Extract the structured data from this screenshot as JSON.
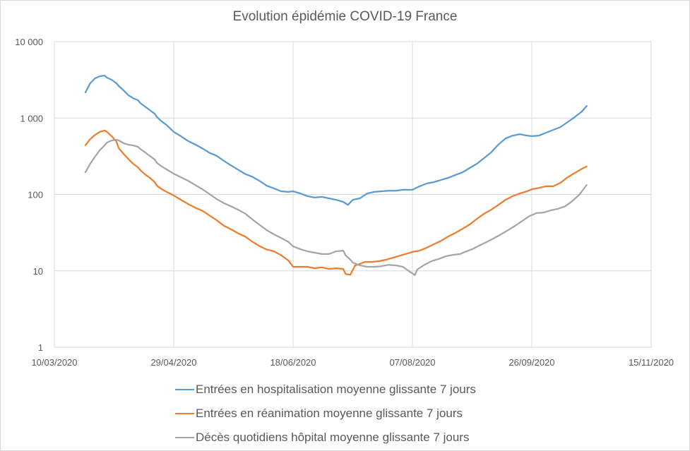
{
  "chart_data": {
    "type": "line",
    "title": "Evolution épidémie COVID-19 France",
    "xlabel": "",
    "ylabel": "",
    "x_unit": "days since 10/03/2020",
    "x_start_date": "10/03/2020",
    "xlim": [
      0,
      250
    ],
    "x_ticks": [
      {
        "day": 0,
        "label": "10/03/2020"
      },
      {
        "day": 50,
        "label": "29/04/2020"
      },
      {
        "day": 100,
        "label": "18/06/2020"
      },
      {
        "day": 150,
        "label": "07/08/2020"
      },
      {
        "day": 200,
        "label": "26/09/2020"
      },
      {
        "day": 250,
        "label": "15/11/2020"
      }
    ],
    "y_scale": "log",
    "ylim": [
      1,
      10000
    ],
    "y_ticks": [
      {
        "value": 1,
        "label": "1"
      },
      {
        "value": 10,
        "label": "10"
      },
      {
        "value": 100,
        "label": "100"
      },
      {
        "value": 1000,
        "label": "1 000"
      },
      {
        "value": 10000,
        "label": "10 000"
      }
    ],
    "grid": true,
    "legend_position": "bottom",
    "series": [
      {
        "name": "Entrées en hospitalisation moyenne glissante 7 jours",
        "color": "#5b9bd5",
        "points": [
          [
            13,
            2160
          ],
          [
            15,
            2850
          ],
          [
            17,
            3310
          ],
          [
            19,
            3520
          ],
          [
            21,
            3600
          ],
          [
            22,
            3380
          ],
          [
            24,
            3170
          ],
          [
            26,
            2850
          ],
          [
            27,
            2620
          ],
          [
            29,
            2300
          ],
          [
            31,
            1990
          ],
          [
            33,
            1820
          ],
          [
            35,
            1710
          ],
          [
            36,
            1570
          ],
          [
            38,
            1410
          ],
          [
            40,
            1270
          ],
          [
            42,
            1140
          ],
          [
            43,
            1030
          ],
          [
            45,
            900
          ],
          [
            47,
            810
          ],
          [
            50,
            660
          ],
          [
            53,
            580
          ],
          [
            56,
            500
          ],
          [
            59,
            450
          ],
          [
            62,
            400
          ],
          [
            65,
            350
          ],
          [
            68,
            320
          ],
          [
            71,
            275
          ],
          [
            74,
            240
          ],
          [
            77,
            210
          ],
          [
            80,
            185
          ],
          [
            83,
            170
          ],
          [
            86,
            150
          ],
          [
            89,
            130
          ],
          [
            92,
            120
          ],
          [
            95,
            110
          ],
          [
            98,
            108
          ],
          [
            100,
            110
          ],
          [
            103,
            103
          ],
          [
            106,
            95
          ],
          [
            109,
            91
          ],
          [
            112,
            93
          ],
          [
            115,
            89
          ],
          [
            118,
            85
          ],
          [
            121,
            80
          ],
          [
            123,
            73
          ],
          [
            125,
            85
          ],
          [
            128,
            89
          ],
          [
            131,
            103
          ],
          [
            134,
            108
          ],
          [
            137,
            110
          ],
          [
            140,
            112
          ],
          [
            143,
            112
          ],
          [
            146,
            115
          ],
          [
            150,
            115
          ],
          [
            153,
            128
          ],
          [
            156,
            139
          ],
          [
            159,
            145
          ],
          [
            162,
            155
          ],
          [
            165,
            165
          ],
          [
            168,
            180
          ],
          [
            171,
            195
          ],
          [
            174,
            222
          ],
          [
            177,
            252
          ],
          [
            180,
            299
          ],
          [
            183,
            355
          ],
          [
            186,
            450
          ],
          [
            189,
            540
          ],
          [
            192,
            590
          ],
          [
            195,
            615
          ],
          [
            198,
            590
          ],
          [
            200,
            580
          ],
          [
            203,
            590
          ],
          [
            206,
            643
          ],
          [
            209,
            700
          ],
          [
            212,
            762
          ],
          [
            215,
            885
          ],
          [
            218,
            1030
          ],
          [
            221,
            1220
          ],
          [
            223,
            1440
          ]
        ]
      },
      {
        "name": "Entrées en réanimation moyenne glissante 7 jours",
        "color": "#ed7d31",
        "points": [
          [
            13,
            440
          ],
          [
            15,
            530
          ],
          [
            17,
            600
          ],
          [
            19,
            660
          ],
          [
            21,
            685
          ],
          [
            22,
            660
          ],
          [
            24,
            580
          ],
          [
            26,
            490
          ],
          [
            27,
            400
          ],
          [
            29,
            340
          ],
          [
            31,
            290
          ],
          [
            33,
            252
          ],
          [
            35,
            227
          ],
          [
            36,
            208
          ],
          [
            38,
            183
          ],
          [
            40,
            165
          ],
          [
            42,
            145
          ],
          [
            43,
            130
          ],
          [
            45,
            117
          ],
          [
            47,
            108
          ],
          [
            50,
            97
          ],
          [
            53,
            85
          ],
          [
            56,
            75
          ],
          [
            59,
            67
          ],
          [
            62,
            61
          ],
          [
            65,
            53
          ],
          [
            68,
            46
          ],
          [
            71,
            39
          ],
          [
            74,
            35
          ],
          [
            77,
            31
          ],
          [
            80,
            28
          ],
          [
            83,
            24
          ],
          [
            86,
            21
          ],
          [
            89,
            19
          ],
          [
            92,
            18
          ],
          [
            95,
            16
          ],
          [
            98,
            13.7
          ],
          [
            100,
            11.3
          ],
          [
            103,
            11.3
          ],
          [
            106,
            11.3
          ],
          [
            109,
            10.8
          ],
          [
            112,
            11.1
          ],
          [
            115,
            10.6
          ],
          [
            118,
            10.8
          ],
          [
            121,
            10.6
          ],
          [
            122,
            9.1
          ],
          [
            124,
            8.9
          ],
          [
            126,
            11.8
          ],
          [
            128,
            12.3
          ],
          [
            130,
            13.1
          ],
          [
            133,
            13.1
          ],
          [
            136,
            13.4
          ],
          [
            139,
            14.0
          ],
          [
            142,
            14.9
          ],
          [
            145,
            15.9
          ],
          [
            148,
            16.9
          ],
          [
            150,
            17.7
          ],
          [
            153,
            18.4
          ],
          [
            156,
            20.1
          ],
          [
            159,
            22.3
          ],
          [
            162,
            24.8
          ],
          [
            165,
            28.2
          ],
          [
            168,
            31.4
          ],
          [
            171,
            35.6
          ],
          [
            174,
            40.5
          ],
          [
            177,
            48
          ],
          [
            180,
            56
          ],
          [
            183,
            63
          ],
          [
            186,
            73
          ],
          [
            189,
            85
          ],
          [
            192,
            95
          ],
          [
            195,
            103
          ],
          [
            198,
            110
          ],
          [
            200,
            117
          ],
          [
            203,
            122
          ],
          [
            206,
            128
          ],
          [
            209,
            128
          ],
          [
            212,
            142
          ],
          [
            215,
            168
          ],
          [
            218,
            191
          ],
          [
            221,
            217
          ],
          [
            223,
            232
          ]
        ]
      },
      {
        "name": "Décès quotidiens hôpital moyenne glissante 7 jours",
        "color": "#a5a5a5",
        "points": [
          [
            13,
            195
          ],
          [
            15,
            252
          ],
          [
            17,
            312
          ],
          [
            19,
            378
          ],
          [
            21,
            439
          ],
          [
            22,
            478
          ],
          [
            24,
            509
          ],
          [
            26,
            520
          ],
          [
            27,
            509
          ],
          [
            29,
            468
          ],
          [
            31,
            448
          ],
          [
            33,
            439
          ],
          [
            35,
            420
          ],
          [
            36,
            394
          ],
          [
            38,
            355
          ],
          [
            40,
            319
          ],
          [
            42,
            287
          ],
          [
            43,
            258
          ],
          [
            45,
            232
          ],
          [
            47,
            213
          ],
          [
            50,
            187
          ],
          [
            53,
            168
          ],
          [
            56,
            151
          ],
          [
            59,
            133
          ],
          [
            62,
            117
          ],
          [
            65,
            101
          ],
          [
            68,
            87
          ],
          [
            71,
            77
          ],
          [
            74,
            70
          ],
          [
            77,
            63
          ],
          [
            80,
            56
          ],
          [
            83,
            47
          ],
          [
            86,
            40
          ],
          [
            89,
            34
          ],
          [
            92,
            30
          ],
          [
            95,
            27
          ],
          [
            98,
            24
          ],
          [
            100,
            21
          ],
          [
            103,
            19.2
          ],
          [
            106,
            18.0
          ],
          [
            109,
            17.3
          ],
          [
            112,
            16.6
          ],
          [
            115,
            16.6
          ],
          [
            118,
            18.0
          ],
          [
            121,
            18.4
          ],
          [
            122,
            15.9
          ],
          [
            124,
            14.0
          ],
          [
            125,
            12.8
          ],
          [
            128,
            11.8
          ],
          [
            131,
            11.3
          ],
          [
            134,
            11.3
          ],
          [
            137,
            11.5
          ],
          [
            140,
            12.0
          ],
          [
            143,
            11.8
          ],
          [
            146,
            11.3
          ],
          [
            149,
            9.7
          ],
          [
            151,
            8.8
          ],
          [
            152,
            10.4
          ],
          [
            155,
            12.0
          ],
          [
            158,
            13.4
          ],
          [
            161,
            14.3
          ],
          [
            164,
            15.5
          ],
          [
            167,
            16.2
          ],
          [
            170,
            16.6
          ],
          [
            172,
            17.7
          ],
          [
            175,
            19.2
          ],
          [
            178,
            21.4
          ],
          [
            181,
            23.8
          ],
          [
            184,
            26.5
          ],
          [
            187,
            30
          ],
          [
            190,
            34
          ],
          [
            193,
            38.8
          ],
          [
            196,
            45
          ],
          [
            199,
            52
          ],
          [
            202,
            57
          ],
          [
            205,
            58
          ],
          [
            208,
            62
          ],
          [
            211,
            65
          ],
          [
            214,
            70
          ],
          [
            217,
            82
          ],
          [
            220,
            100
          ],
          [
            223,
            133
          ]
        ]
      }
    ]
  }
}
